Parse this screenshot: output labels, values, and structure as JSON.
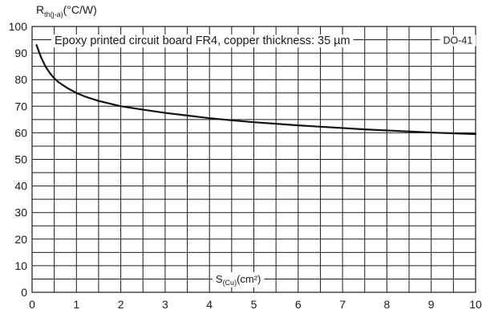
{
  "chart_data": {
    "type": "line",
    "ylabel": {
      "main": "R",
      "sub": "th(j-a)",
      "unit": "(°C/W)"
    },
    "xlabel": {
      "main": "S",
      "sub": "(Cu)",
      "unit": "(cm²)"
    },
    "annotation": "Epoxy printed circuit board FR4, copper thickness:  35 µm",
    "package": "DO-41",
    "xlim": [
      0,
      10
    ],
    "ylim": [
      0,
      100
    ],
    "x_ticks": [
      "0",
      "1",
      "2",
      "3",
      "4",
      "5",
      "6",
      "7",
      "8",
      "9",
      "10"
    ],
    "y_ticks": [
      "0",
      "10",
      "20",
      "30",
      "40",
      "50",
      "60",
      "70",
      "80",
      "90",
      "100"
    ],
    "grid": true,
    "series": [
      {
        "x": [
          0.1,
          0.2,
          0.3,
          0.4,
          0.5,
          0.6,
          0.8,
          1.0,
          1.2,
          1.5,
          2.0,
          2.5,
          3.0,
          3.5,
          4.0,
          4.5,
          5.0,
          5.5,
          6.0,
          6.5,
          7.0,
          7.5,
          8.0,
          8.5,
          9.0,
          9.5,
          10.0
        ],
        "y": [
          93,
          88.5,
          85,
          82.5,
          80.5,
          79,
          76.8,
          75,
          73.6,
          72,
          70,
          68.7,
          67.5,
          66.5,
          65.5,
          64.7,
          64,
          63.4,
          62.8,
          62.3,
          61.8,
          61.3,
          60.9,
          60.5,
          60.1,
          59.8,
          59.5
        ]
      }
    ]
  }
}
